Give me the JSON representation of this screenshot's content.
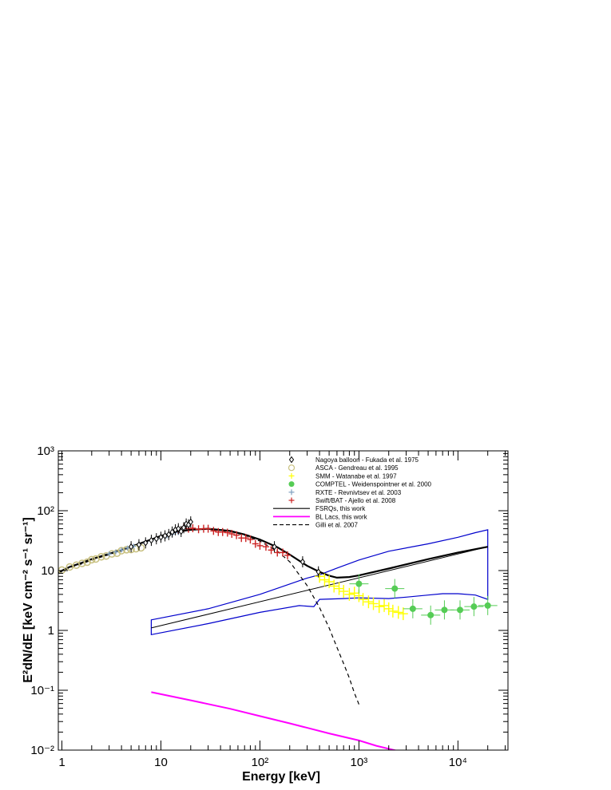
{
  "colors": {
    "frsq": "#000000",
    "bllac": "#ff00ff",
    "band": "#0000cc",
    "nagoya": "#000000",
    "asca": "#c8c080",
    "smm": "#ffff00",
    "comptel": "#55cc55",
    "rxte": "#7f9fbf",
    "swift": "#cc2222"
  },
  "chart_data": {
    "type": "scatter",
    "xlabel": "Energy [keV]",
    "ylabel": "E²dN/dE [keV cm⁻² s⁻¹ sr⁻¹]",
    "xscale": "log",
    "yscale": "log",
    "xlim": [
      0.92,
      32000
    ],
    "ylim": [
      0.01,
      1000
    ],
    "x_ticks": [
      {
        "value": 1,
        "label": "1"
      },
      {
        "value": 10,
        "label": "10"
      },
      {
        "value": 100,
        "label": "10²"
      },
      {
        "value": 1000,
        "label": "10³"
      },
      {
        "value": 10000,
        "label": "10⁴"
      }
    ],
    "y_ticks": [
      {
        "value": 0.01,
        "label": "10⁻²"
      },
      {
        "value": 0.1,
        "label": "10⁻¹"
      },
      {
        "value": 1,
        "label": "1"
      },
      {
        "value": 10,
        "label": "10"
      },
      {
        "value": 100,
        "label": "10²"
      },
      {
        "value": 1000,
        "label": "10³"
      }
    ],
    "legend": {
      "position": "top-right",
      "entries": [
        {
          "key": "nagoya",
          "label": "Nagoya balloon - Fukada et al. 1975",
          "marker": "diamond-open"
        },
        {
          "key": "asca",
          "label": "ASCA - Gendreau et al. 1995",
          "marker": "circle-open"
        },
        {
          "key": "smm",
          "label": "SMM - Watanabe et al. 1997",
          "marker": "cross"
        },
        {
          "key": "comptel",
          "label": "COMPTEL - Weidenspointner et al. 2000",
          "marker": "circle-filled"
        },
        {
          "key": "rxte",
          "label": "RXTE - Revnivtsev et al. 2003",
          "marker": "cross"
        },
        {
          "key": "swift",
          "label": "Swift/BAT - Ajello et al. 2008",
          "marker": "cross"
        },
        {
          "key": "frsq",
          "label": "FSRQs, this work",
          "marker": "line"
        },
        {
          "key": "bllac",
          "label": "BL Lacs, this work",
          "marker": "line"
        },
        {
          "key": "gilli",
          "label": "Gilli et al. 2007",
          "marker": "dashed"
        }
      ]
    },
    "series": [
      {
        "key": "asca",
        "style": "points",
        "x": [
          1.0,
          1.2,
          1.4,
          1.6,
          1.8,
          2.0,
          2.2,
          2.5,
          2.8,
          3.2,
          3.6,
          4.0,
          4.5,
          5.0,
          5.6,
          6.3
        ],
        "y": [
          10.2,
          11.5,
          12.3,
          13.2,
          13.8,
          15.2,
          15.6,
          17.0,
          17.5,
          19.0,
          19.5,
          21.5,
          22.3,
          22.5,
          23.2,
          24.0
        ]
      },
      {
        "key": "rxte",
        "style": "points",
        "x": [
          3.0,
          3.5,
          4.0,
          4.6,
          5.3,
          6.0,
          7.0,
          8.0,
          9.0,
          10.0,
          11.5,
          13.0,
          15.0
        ],
        "y": [
          19.0,
          20.5,
          22.0,
          23.8,
          25.5,
          27.0,
          29.5,
          31.5,
          33.5,
          35.5,
          38.0,
          40.5,
          43.0
        ]
      },
      {
        "key": "nagoya",
        "style": "points",
        "x": [
          5.0,
          6.0,
          7.0,
          8.0,
          9.0,
          10.0,
          11.0,
          12.0,
          13.0,
          14.0,
          15.0,
          16.0,
          17.0,
          18.0,
          19.0,
          20.0,
          140.0,
          270.0,
          390.0
        ],
        "y": [
          25.0,
          27.0,
          29.0,
          32.0,
          34.0,
          36.0,
          38.0,
          40.0,
          44.0,
          48.0,
          50.0,
          45.0,
          52.0,
          60.0,
          58.0,
          65.0,
          25.0,
          14.0,
          9.5
        ]
      },
      {
        "key": "swift",
        "style": "points",
        "x": [
          15.0,
          17.0,
          19.0,
          21.0,
          24.0,
          27.0,
          30.0,
          34.0,
          38.0,
          42.0,
          47.0,
          52.0,
          58.0,
          65.0,
          72.0,
          80.0,
          90.0,
          100.0,
          115.0,
          130.0,
          150.0,
          170.0,
          190.0
        ],
        "y": [
          48.0,
          52.0,
          50.0,
          51.0,
          49.0,
          50.0,
          50.0,
          46.0,
          44.0,
          44.0,
          43.0,
          41.0,
          39.0,
          35.0,
          35.0,
          33.0,
          28.0,
          26.0,
          25.0,
          22.0,
          20.0,
          20.0,
          18.0
        ]
      },
      {
        "key": "smm",
        "style": "points",
        "x": [
          400,
          450,
          500,
          560,
          630,
          700,
          800,
          900,
          1000,
          1100,
          1250,
          1400,
          1600,
          1800,
          2000,
          2200,
          2500,
          2800
        ],
        "y": [
          8.0,
          7.0,
          6.5,
          5.5,
          5.0,
          4.5,
          4.0,
          4.2,
          3.8,
          3.3,
          3.0,
          2.8,
          2.5,
          2.6,
          2.3,
          2.1,
          2.0,
          1.9
        ]
      },
      {
        "key": "comptel",
        "style": "points",
        "x": [
          1000,
          2300,
          3500,
          5300,
          7300,
          10500,
          14500,
          20000
        ],
        "y": [
          6.0,
          5.0,
          2.3,
          1.8,
          2.2,
          2.2,
          2.5,
          2.6
        ]
      },
      {
        "key": "total",
        "style": "line",
        "x": [
          0.92,
          1.2,
          1.6,
          2.0,
          3.0,
          4.0,
          6.0,
          8.0,
          10,
          14,
          20,
          30,
          50,
          70,
          100,
          150,
          200,
          300,
          400,
          500,
          600,
          800,
          1000,
          2000,
          5000,
          10000,
          20000
        ],
        "y": [
          9.3,
          11.5,
          13.5,
          15.5,
          19.0,
          22.0,
          28.0,
          33.0,
          38.0,
          44.0,
          48.0,
          50.0,
          46.0,
          40.0,
          33.0,
          24.5,
          18.5,
          12.0,
          9.5,
          8.2,
          7.6,
          7.8,
          8.3,
          10.8,
          15.5,
          20.0,
          25.0
        ]
      },
      {
        "key": "gilli",
        "style": "dashed",
        "x": [
          0.92,
          1.2,
          1.6,
          2.0,
          3.0,
          4.0,
          6.0,
          8.0,
          10,
          14,
          20,
          30,
          50,
          70,
          100,
          150,
          200,
          300,
          400,
          500,
          600,
          700,
          800,
          900,
          1000
        ],
        "y": [
          9.0,
          11.2,
          13.0,
          15.0,
          18.5,
          21.5,
          27.5,
          32.5,
          37.5,
          43.5,
          47.5,
          49.0,
          45.0,
          39.0,
          31.0,
          21.0,
          14.0,
          5.6,
          2.4,
          1.1,
          0.52,
          0.28,
          0.16,
          0.09,
          0.058
        ]
      },
      {
        "key": "frsq",
        "style": "line",
        "x": [
          8,
          20000
        ],
        "y": [
          1.1,
          25.0
        ]
      },
      {
        "key": "band_upper",
        "style": "band",
        "x": [
          8,
          30,
          100,
          300,
          400,
          600,
          1000,
          2000,
          5000,
          10000,
          15000,
          20000
        ],
        "y": [
          1.5,
          2.3,
          4.0,
          7.5,
          8.5,
          11.0,
          15.0,
          21.0,
          28.0,
          36.0,
          43.0,
          48.0
        ]
      },
      {
        "key": "band_lower",
        "style": "band",
        "x": [
          8,
          30,
          100,
          250,
          350,
          400,
          700,
          1000,
          2000,
          3000,
          5000,
          7000,
          10000,
          15000,
          20000
        ],
        "y": [
          0.85,
          1.3,
          2.0,
          2.6,
          2.5,
          3.3,
          3.4,
          3.5,
          3.4,
          3.6,
          3.9,
          4.1,
          4.1,
          3.9,
          3.3
        ]
      },
      {
        "key": "bllac",
        "style": "line",
        "x": [
          8,
          20,
          50,
          100,
          200,
          500,
          1000,
          1500,
          2400
        ],
        "y": [
          0.093,
          0.068,
          0.049,
          0.037,
          0.028,
          0.019,
          0.0145,
          0.0118,
          0.0098
        ]
      }
    ]
  }
}
